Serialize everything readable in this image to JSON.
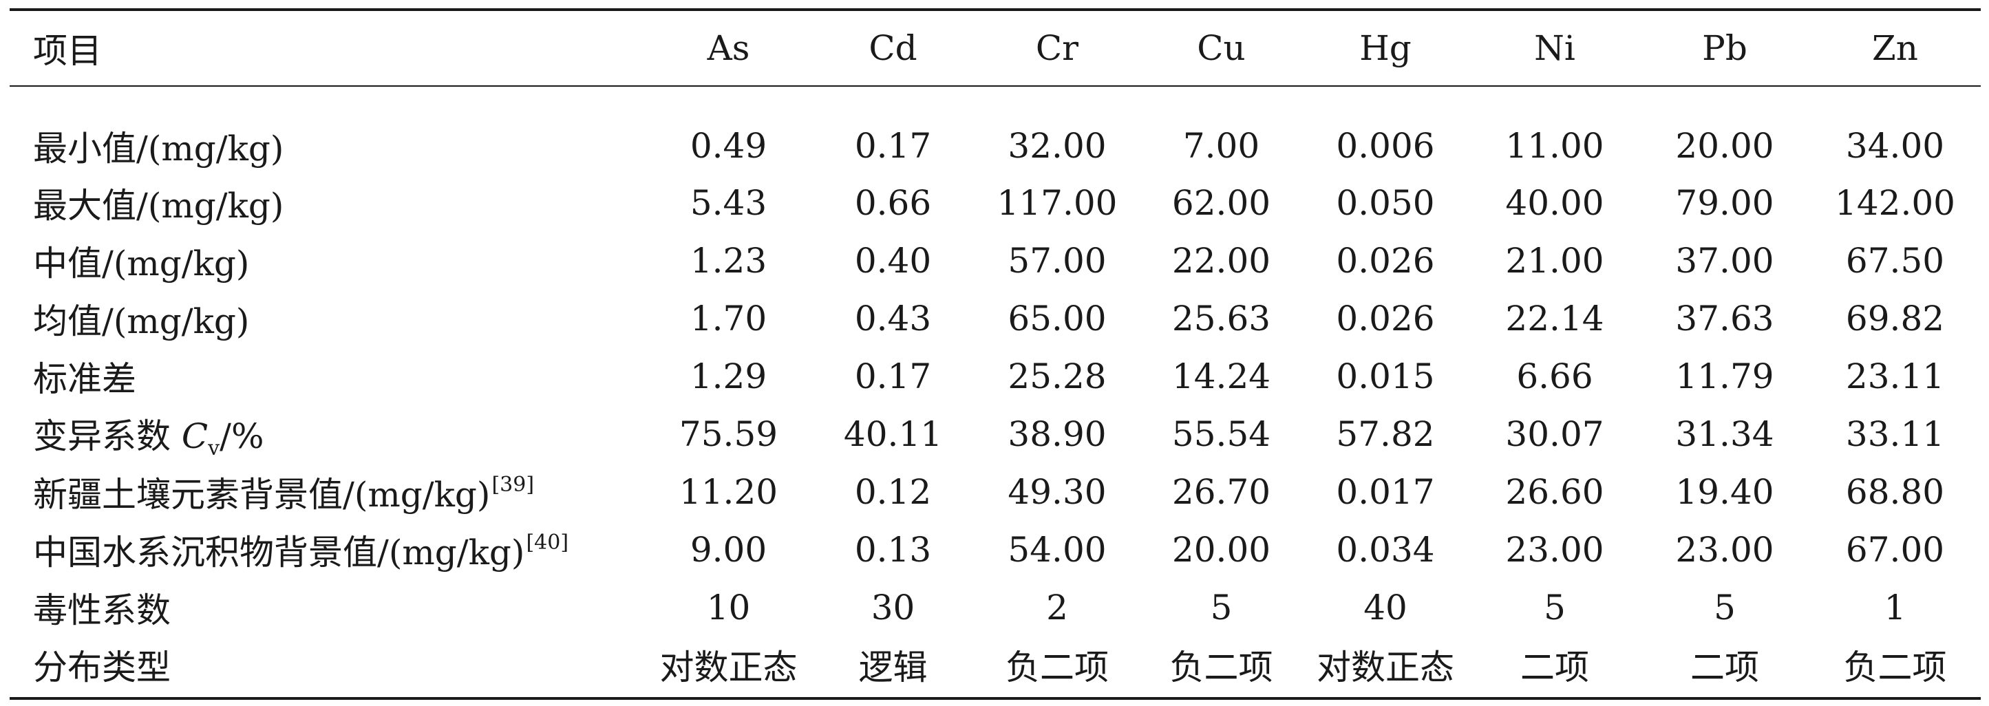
{
  "table": {
    "headers": [
      "项目",
      "As",
      "Cd",
      "Cr",
      "Cu",
      "Hg",
      "Ni",
      "Pb",
      "Zn"
    ],
    "rows": [
      {
        "label": "最小值/(mg/kg)",
        "values": [
          "0.49",
          "0.17",
          "32.00",
          "7.00",
          "0.006",
          "11.00",
          "20.00",
          "34.00"
        ]
      },
      {
        "label": "最大值/(mg/kg)",
        "values": [
          "5.43",
          "0.66",
          "117.00",
          "62.00",
          "0.050",
          "40.00",
          "79.00",
          "142.00"
        ]
      },
      {
        "label": "中值/(mg/kg)",
        "values": [
          "1.23",
          "0.40",
          "57.00",
          "22.00",
          "0.026",
          "21.00",
          "37.00",
          "67.50"
        ]
      },
      {
        "label": "均值/(mg/kg)",
        "values": [
          "1.70",
          "0.43",
          "65.00",
          "25.63",
          "0.026",
          "22.14",
          "37.63",
          "69.82"
        ]
      },
      {
        "label": "标准差",
        "values": [
          "1.29",
          "0.17",
          "25.28",
          "14.24",
          "0.015",
          "6.66",
          "11.79",
          "23.11"
        ]
      },
      {
        "label": "变异系数 ",
        "label_italic": "C",
        "label_sub": "v",
        "label_tail": "/%",
        "values": [
          "75.59",
          "40.11",
          "38.90",
          "55.54",
          "57.82",
          "30.07",
          "31.34",
          "33.11"
        ]
      },
      {
        "label": "新疆土壤元素背景值/(mg/kg)",
        "cite": "[39]",
        "values": [
          "11.20",
          "0.12",
          "49.30",
          "26.70",
          "0.017",
          "26.60",
          "19.40",
          "68.80"
        ]
      },
      {
        "label": "中国水系沉积物背景值/(mg/kg)",
        "cite": "[40]",
        "values": [
          "9.00",
          "0.13",
          "54.00",
          "20.00",
          "0.034",
          "23.00",
          "23.00",
          "67.00"
        ]
      },
      {
        "label": "毒性系数",
        "values": [
          "10",
          "30",
          "2",
          "5",
          "40",
          "5",
          "5",
          "1"
        ]
      },
      {
        "label": "分布类型",
        "values": [
          "对数正态",
          "逻辑",
          "负二项",
          "负二项",
          "对数正态",
          "二项",
          "二项",
          "负二项"
        ]
      }
    ]
  }
}
